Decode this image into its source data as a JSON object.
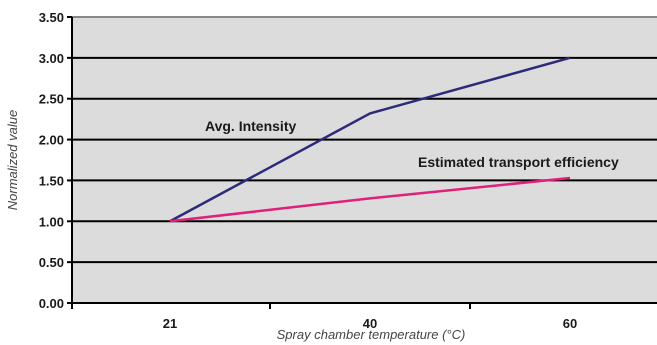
{
  "chart_data": {
    "type": "line",
    "xlabel": "Spray chamber temperature (°C)",
    "ylabel": "Normalized value",
    "x_ticks": [
      "21",
      "40",
      "60"
    ],
    "y_ticks": [
      "0.00",
      "0.50",
      "1.00",
      "1.50",
      "2.00",
      "2.50",
      "3.00",
      "3.50"
    ],
    "ylim": [
      0,
      3.5
    ],
    "grid": "horizontal",
    "legend": "none",
    "plot_background": "#dcdcdc",
    "series": [
      {
        "name": "Avg. Intensity",
        "color": "#2e2a7a",
        "points": [
          {
            "x": 21,
            "y": 1.0
          },
          {
            "x": 40,
            "y": 2.32
          },
          {
            "x": 60,
            "y": 3.0
          }
        ]
      },
      {
        "name": "Estimated transport efficiency",
        "color": "#e0207a",
        "points": [
          {
            "x": 21,
            "y": 1.0
          },
          {
            "x": 40,
            "y": 1.28
          },
          {
            "x": 60,
            "y": 1.53
          }
        ]
      }
    ]
  }
}
